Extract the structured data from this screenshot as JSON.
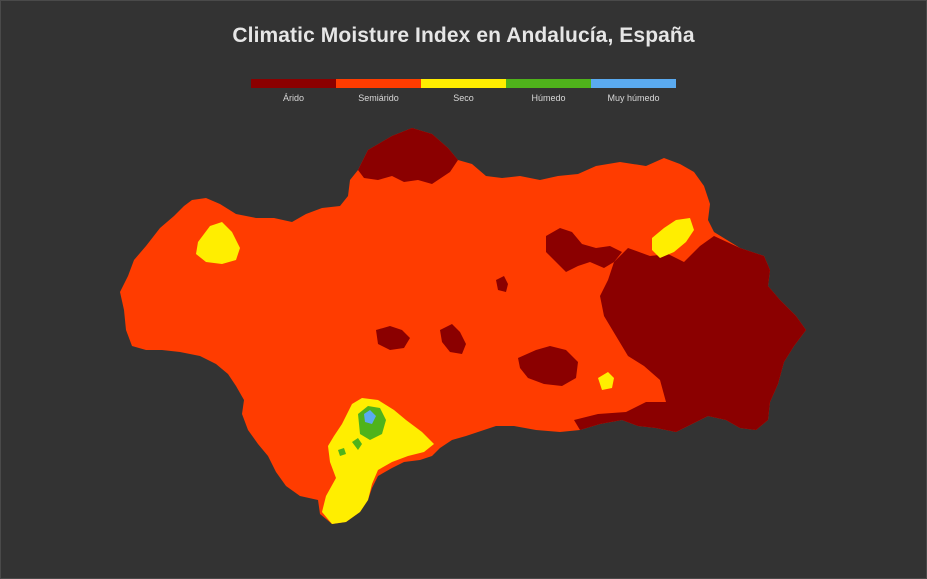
{
  "title": "Climatic Moisture Index en Andalucía, España",
  "legend": {
    "items": [
      {
        "label": "Árido",
        "color": "#8b0000"
      },
      {
        "label": "Semiárido",
        "color": "#ff3c00"
      },
      {
        "label": "Seco",
        "color": "#ffee00"
      },
      {
        "label": "Húmedo",
        "color": "#4fb31b"
      },
      {
        "label": "Muy húmedo",
        "color": "#5aaaf0"
      }
    ]
  },
  "map": {
    "region": "Andalucía",
    "background_color": "#333333"
  }
}
